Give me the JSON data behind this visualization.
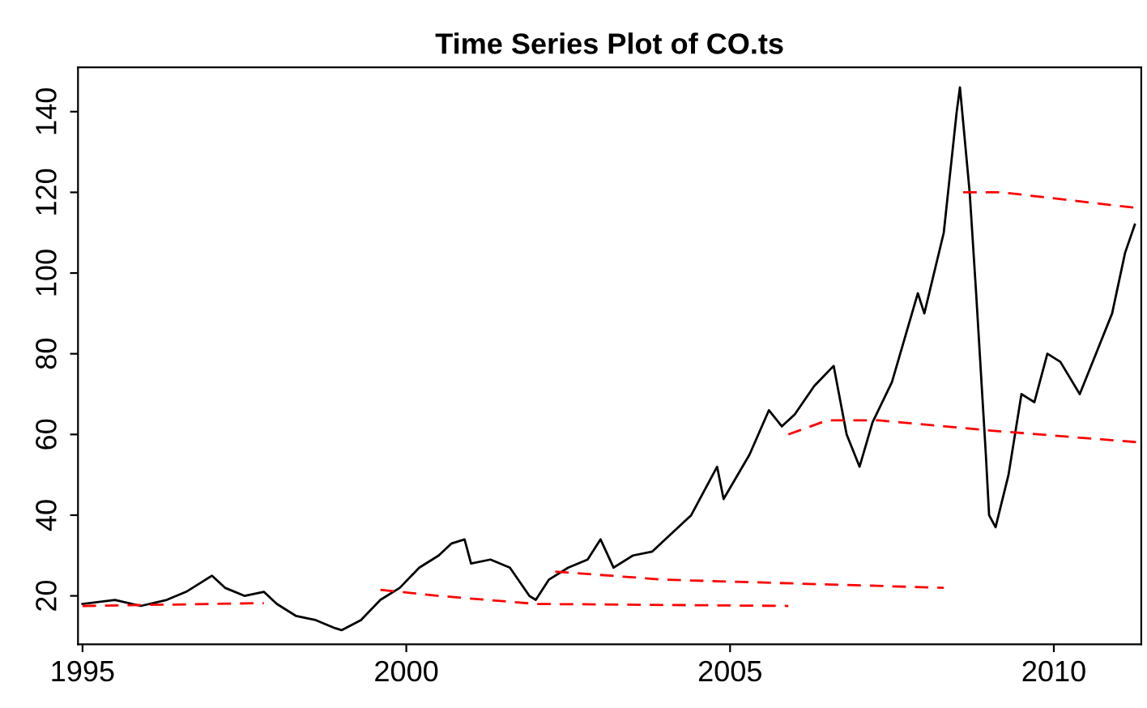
{
  "chart_data": {
    "type": "line",
    "title": "Time Series Plot of CO.ts",
    "xlim": [
      1994.93,
      2011.35
    ],
    "ylim": [
      8,
      151
    ],
    "xticks": [
      1995,
      2000,
      2005,
      2010
    ],
    "yticks": [
      20,
      40,
      60,
      80,
      100,
      120,
      140
    ],
    "grid": false,
    "legend": false,
    "marker": "none",
    "series": [
      {
        "color": "#000000",
        "line_style": "solid",
        "x": [
          1995.0,
          1995.5,
          1995.9,
          1996.3,
          1996.6,
          1996.9,
          1997.0,
          1997.2,
          1997.5,
          1997.8,
          1998.0,
          1998.3,
          1998.6,
          1998.9,
          1999.0,
          1999.3,
          1999.6,
          1999.9,
          2000.2,
          2000.5,
          2000.7,
          2000.9,
          2001.0,
          2001.3,
          2001.6,
          2001.9,
          2002.0,
          2002.2,
          2002.5,
          2002.8,
          2003.0,
          2003.2,
          2003.5,
          2003.8,
          2004.0,
          2004.4,
          2004.8,
          2004.9,
          2005.3,
          2005.6,
          2005.8,
          2006.0,
          2006.3,
          2006.6,
          2006.8,
          2007.0,
          2007.2,
          2007.5,
          2007.9,
          2008.0,
          2008.3,
          2008.5,
          2008.55,
          2008.7,
          2008.8,
          2008.95,
          2009.0,
          2009.1,
          2009.3,
          2009.5,
          2009.7,
          2009.9,
          2010.1,
          2010.4,
          2010.6,
          2010.9,
          2011.1,
          2011.25
        ],
        "values": [
          18,
          19,
          17.5,
          19,
          21,
          24,
          25,
          22,
          20,
          21,
          18,
          15,
          14,
          12,
          11.5,
          14,
          19,
          22,
          27,
          30,
          33,
          34,
          28,
          29,
          27,
          20,
          19,
          24,
          27,
          29,
          34,
          27,
          30,
          31,
          34,
          40,
          52,
          44,
          55,
          66,
          62,
          65,
          72,
          77,
          60,
          52,
          63,
          73,
          95,
          90,
          110,
          140,
          146,
          120,
          95,
          55,
          40,
          37,
          50,
          70,
          68,
          80,
          78,
          70,
          78,
          90,
          105,
          112
        ]
      },
      {
        "color": "#ff0000",
        "line_style": "dashed",
        "x": [
          1995.0,
          1997.8
        ],
        "values": [
          17.5,
          18.2
        ]
      },
      {
        "color": "#ff0000",
        "line_style": "dashed",
        "x": [
          1999.6,
          2000.5,
          2002.0,
          2005.9
        ],
        "values": [
          21.5,
          20,
          18,
          17.5
        ]
      },
      {
        "color": "#ff0000",
        "line_style": "dashed",
        "x": [
          2002.3,
          2004.0,
          2008.3
        ],
        "values": [
          26,
          24,
          22
        ]
      },
      {
        "color": "#ff0000",
        "line_style": "dashed",
        "x": [
          2005.9,
          2006.5,
          2007.3,
          2009.0,
          2011.35
        ],
        "values": [
          60,
          63.5,
          63.5,
          61,
          58
        ]
      },
      {
        "color": "#ff0000",
        "line_style": "dashed",
        "x": [
          2008.6,
          2009.2,
          2011.35
        ],
        "values": [
          120,
          120,
          116
        ]
      }
    ]
  }
}
